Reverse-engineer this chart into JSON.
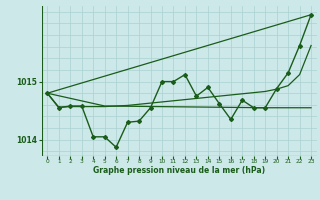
{
  "xlabel": "Graphe pression niveau de la mer (hPa)",
  "background_color": "#cce8e8",
  "grid_color": "#aad0d0",
  "line_color": "#1a5c1a",
  "xlim": [
    -0.5,
    23.5
  ],
  "ylim": [
    1013.72,
    1016.3
  ],
  "yticks": [
    1014,
    1015
  ],
  "xticks": [
    0,
    1,
    2,
    3,
    4,
    5,
    6,
    7,
    8,
    9,
    10,
    11,
    12,
    13,
    14,
    15,
    16,
    17,
    18,
    19,
    20,
    21,
    22,
    23
  ],
  "hours": [
    0,
    1,
    2,
    3,
    4,
    5,
    6,
    7,
    8,
    9,
    10,
    11,
    12,
    13,
    14,
    15,
    16,
    17,
    18,
    19,
    20,
    21,
    22,
    23
  ],
  "pressure_main": [
    1014.8,
    1014.55,
    1014.58,
    1014.58,
    1014.05,
    1014.05,
    1013.87,
    1014.3,
    1014.32,
    1014.55,
    1015.0,
    1015.0,
    1015.12,
    1014.75,
    1014.9,
    1014.62,
    1014.35,
    1014.68,
    1014.55,
    1014.55,
    1014.88,
    1015.15,
    1015.62,
    1016.15
  ],
  "trend_line": [
    [
      0,
      23
    ],
    [
      1014.8,
      1016.15
    ]
  ],
  "flat_line": [
    [
      0,
      5,
      19,
      23
    ],
    [
      1014.8,
      1014.58,
      1014.55,
      1014.55
    ]
  ],
  "smooth_line_x": [
    0,
    1,
    2,
    3,
    4,
    5,
    6,
    7,
    8,
    9,
    10,
    11,
    12,
    13,
    14,
    15,
    16,
    17,
    18,
    19,
    20,
    21,
    22,
    23
  ],
  "smooth_line_y": [
    1014.8,
    1014.56,
    1014.57,
    1014.57,
    1014.57,
    1014.57,
    1014.58,
    1014.59,
    1014.61,
    1014.63,
    1014.65,
    1014.67,
    1014.69,
    1014.71,
    1014.73,
    1014.75,
    1014.77,
    1014.79,
    1014.81,
    1014.83,
    1014.87,
    1014.93,
    1015.12,
    1015.62
  ]
}
